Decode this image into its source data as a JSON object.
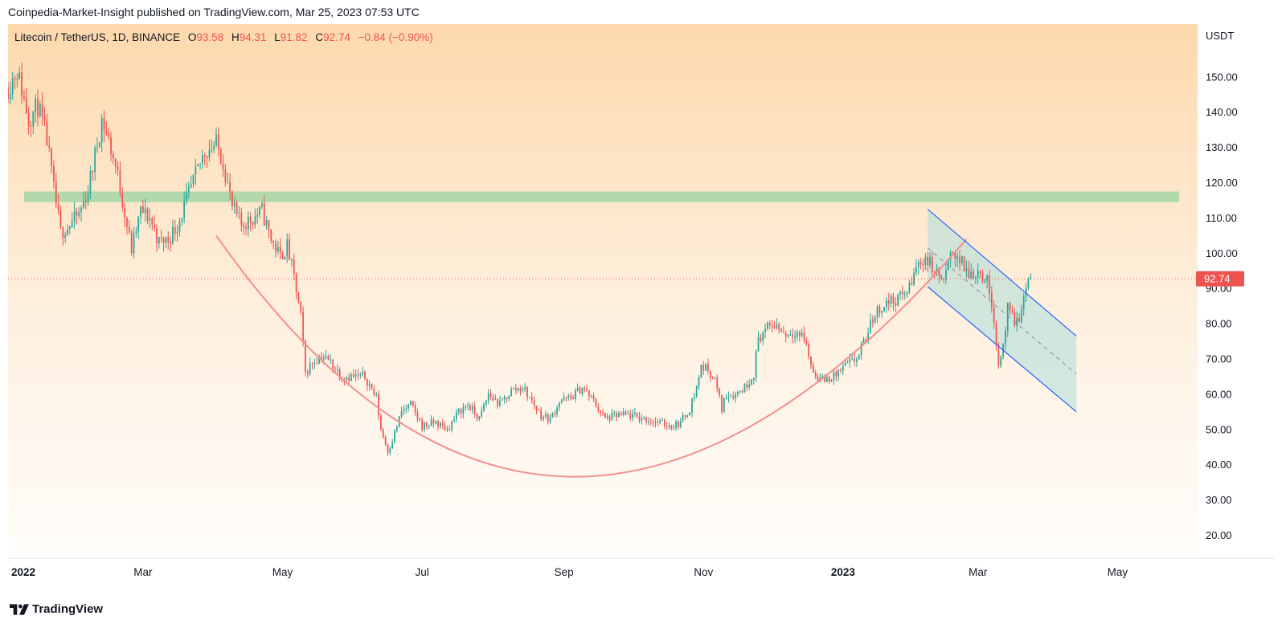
{
  "header": {
    "publisher_line": "Coinpedia-Market-Insight published on TradingView.com, Mar 25, 2023 07:53 UTC"
  },
  "footer": {
    "brand": "TradingView"
  },
  "colors": {
    "up": "#26a69a",
    "down": "#ef5350",
    "zone": "#a5d6a7",
    "channel_fill": "#b2dfdb",
    "channel_line": "#2962ff",
    "cup_curve": "#f48e8e",
    "price_tag": "#ef5350"
  },
  "chart_data": {
    "type": "candlestick",
    "symbol_line": {
      "name": "Litecoin / TetherUS, 1D, BINANCE",
      "o_label": "O",
      "o_value": "93.58",
      "h_label": "H",
      "h_value": "94.31",
      "l_label": "L",
      "l_value": "91.82",
      "c_label": "C",
      "c_value": "92.74",
      "change": "−0.84 (−0.90%)"
    },
    "currency": "USDT",
    "last_price_label": "92.74",
    "last_price": 92.74,
    "y_ticks": [
      "150.00",
      "140.00",
      "130.00",
      "120.00",
      "110.00",
      "100.00",
      "90.00",
      "80.00",
      "70.00",
      "60.00",
      "50.00",
      "40.00",
      "30.00",
      "20.00"
    ],
    "y_tick_values": [
      150,
      140,
      130,
      120,
      110,
      100,
      90,
      80,
      70,
      60,
      50,
      40,
      30,
      20
    ],
    "ylim": [
      13.5,
      165
    ],
    "x_ticks": [
      {
        "label": "2022",
        "date": "2022-01-01",
        "bold": true
      },
      {
        "label": "Mar",
        "date": "2022-03-01",
        "bold": false
      },
      {
        "label": "May",
        "date": "2022-05-01",
        "bold": false
      },
      {
        "label": "Jul",
        "date": "2022-07-01",
        "bold": false
      },
      {
        "label": "Sep",
        "date": "2022-09-01",
        "bold": false
      },
      {
        "label": "Nov",
        "date": "2022-11-01",
        "bold": false
      },
      {
        "label": "2023",
        "date": "2023-01-01",
        "bold": true
      },
      {
        "label": "Mar",
        "date": "2023-03-01",
        "bold": false
      },
      {
        "label": "May",
        "date": "2023-05-01",
        "bold": false
      }
    ],
    "xlim": [
      "2022-01-01",
      "2023-06-05"
    ],
    "price_path": [
      [
        "2022-01-01",
        147
      ],
      [
        "2022-01-05",
        152
      ],
      [
        "2022-01-10",
        138
      ],
      [
        "2022-01-14",
        142
      ],
      [
        "2022-01-18",
        132
      ],
      [
        "2022-01-21",
        118
      ],
      [
        "2022-01-24",
        106
      ],
      [
        "2022-01-28",
        108
      ],
      [
        "2022-02-01",
        111
      ],
      [
        "2022-02-05",
        118
      ],
      [
        "2022-02-09",
        131
      ],
      [
        "2022-02-11",
        138
      ],
      [
        "2022-02-14",
        132
      ],
      [
        "2022-02-18",
        122
      ],
      [
        "2022-02-22",
        108
      ],
      [
        "2022-02-24",
        101
      ],
      [
        "2022-02-28",
        112
      ],
      [
        "2022-03-04",
        110
      ],
      [
        "2022-03-08",
        103
      ],
      [
        "2022-03-12",
        104
      ],
      [
        "2022-03-16",
        108
      ],
      [
        "2022-03-20",
        115
      ],
      [
        "2022-03-24",
        122
      ],
      [
        "2022-03-28",
        129
      ],
      [
        "2022-04-02",
        131
      ],
      [
        "2022-04-05",
        126
      ],
      [
        "2022-04-09",
        113
      ],
      [
        "2022-04-13",
        108
      ],
      [
        "2022-04-18",
        110
      ],
      [
        "2022-04-22",
        112
      ],
      [
        "2022-04-26",
        104
      ],
      [
        "2022-04-30",
        99
      ],
      [
        "2022-05-03",
        102
      ],
      [
        "2022-05-06",
        93
      ],
      [
        "2022-05-09",
        82
      ],
      [
        "2022-05-11",
        66
      ],
      [
        "2022-05-14",
        69
      ],
      [
        "2022-05-18",
        71
      ],
      [
        "2022-05-22",
        69
      ],
      [
        "2022-05-27",
        65
      ],
      [
        "2022-06-01",
        65
      ],
      [
        "2022-06-06",
        65
      ],
      [
        "2022-06-11",
        59
      ],
      [
        "2022-06-13",
        50
      ],
      [
        "2022-06-16",
        44
      ],
      [
        "2022-06-18",
        47
      ],
      [
        "2022-06-22",
        55
      ],
      [
        "2022-06-26",
        57
      ],
      [
        "2022-07-01",
        51
      ],
      [
        "2022-07-07",
        52
      ],
      [
        "2022-07-12",
        50
      ],
      [
        "2022-07-17",
        55
      ],
      [
        "2022-07-21",
        57
      ],
      [
        "2022-07-26",
        53
      ],
      [
        "2022-07-30",
        60
      ],
      [
        "2022-08-04",
        57
      ],
      [
        "2022-08-09",
        61
      ],
      [
        "2022-08-14",
        62
      ],
      [
        "2022-08-18",
        58
      ],
      [
        "2022-08-22",
        54
      ],
      [
        "2022-08-26",
        53
      ],
      [
        "2022-08-30",
        58
      ],
      [
        "2022-09-04",
        59
      ],
      [
        "2022-09-09",
        62
      ],
      [
        "2022-09-14",
        58
      ],
      [
        "2022-09-19",
        53
      ],
      [
        "2022-09-24",
        54
      ],
      [
        "2022-09-30",
        54
      ],
      [
        "2022-10-06",
        53
      ],
      [
        "2022-10-12",
        52
      ],
      [
        "2022-10-18",
        51
      ],
      [
        "2022-10-22",
        52
      ],
      [
        "2022-10-26",
        56
      ],
      [
        "2022-10-29",
        62
      ],
      [
        "2022-10-31",
        68
      ],
      [
        "2022-11-03",
        67
      ],
      [
        "2022-11-06",
        64
      ],
      [
        "2022-11-09",
        56
      ],
      [
        "2022-11-11",
        60
      ],
      [
        "2022-11-15",
        60
      ],
      [
        "2022-11-19",
        62
      ],
      [
        "2022-11-23",
        66
      ],
      [
        "2022-11-25",
        76
      ],
      [
        "2022-11-28",
        78
      ],
      [
        "2022-12-02",
        80
      ],
      [
        "2022-12-07",
        77
      ],
      [
        "2022-12-11",
        78
      ],
      [
        "2022-12-15",
        76
      ],
      [
        "2022-12-19",
        66
      ],
      [
        "2022-12-23",
        64
      ],
      [
        "2022-12-28",
        65
      ],
      [
        "2023-01-02",
        68
      ],
      [
        "2023-01-07",
        70
      ],
      [
        "2023-01-11",
        76
      ],
      [
        "2023-01-15",
        83
      ],
      [
        "2023-01-20",
        86
      ],
      [
        "2023-01-25",
        87
      ],
      [
        "2023-01-30",
        90
      ],
      [
        "2023-02-02",
        96
      ],
      [
        "2023-02-06",
        99
      ],
      [
        "2023-02-10",
        95
      ],
      [
        "2023-02-14",
        92
      ],
      [
        "2023-02-18",
        101
      ],
      [
        "2023-02-21",
        98
      ],
      [
        "2023-02-25",
        94
      ],
      [
        "2023-03-01",
        95
      ],
      [
        "2023-03-05",
        92
      ],
      [
        "2023-03-08",
        82
      ],
      [
        "2023-03-10",
        68
      ],
      [
        "2023-03-12",
        74
      ],
      [
        "2023-03-14",
        84
      ],
      [
        "2023-03-17",
        80
      ],
      [
        "2023-03-20",
        83
      ],
      [
        "2023-03-22",
        91
      ],
      [
        "2023-03-24",
        93.58
      ]
    ],
    "annotations": {
      "resistance_zone": {
        "start": "2022-01-08",
        "end": "2023-05-28",
        "top": 117.5,
        "bottom": 114.5
      },
      "cup_curve": {
        "start": [
          "2022-04-02",
          105
        ],
        "vertex": [
          "2022-09-05",
          36.6
        ],
        "end": [
          "2023-02-24",
          104
        ]
      },
      "channel": {
        "upper": [
          [
            "2023-02-07",
            112.5
          ],
          [
            "2023-04-13",
            76.5
          ]
        ],
        "lower": [
          [
            "2023-02-07",
            90.5
          ],
          [
            "2023-04-13",
            55
          ]
        ],
        "median": [
          [
            "2023-02-07",
            101.5
          ],
          [
            "2023-04-13",
            65.7
          ]
        ]
      }
    }
  }
}
